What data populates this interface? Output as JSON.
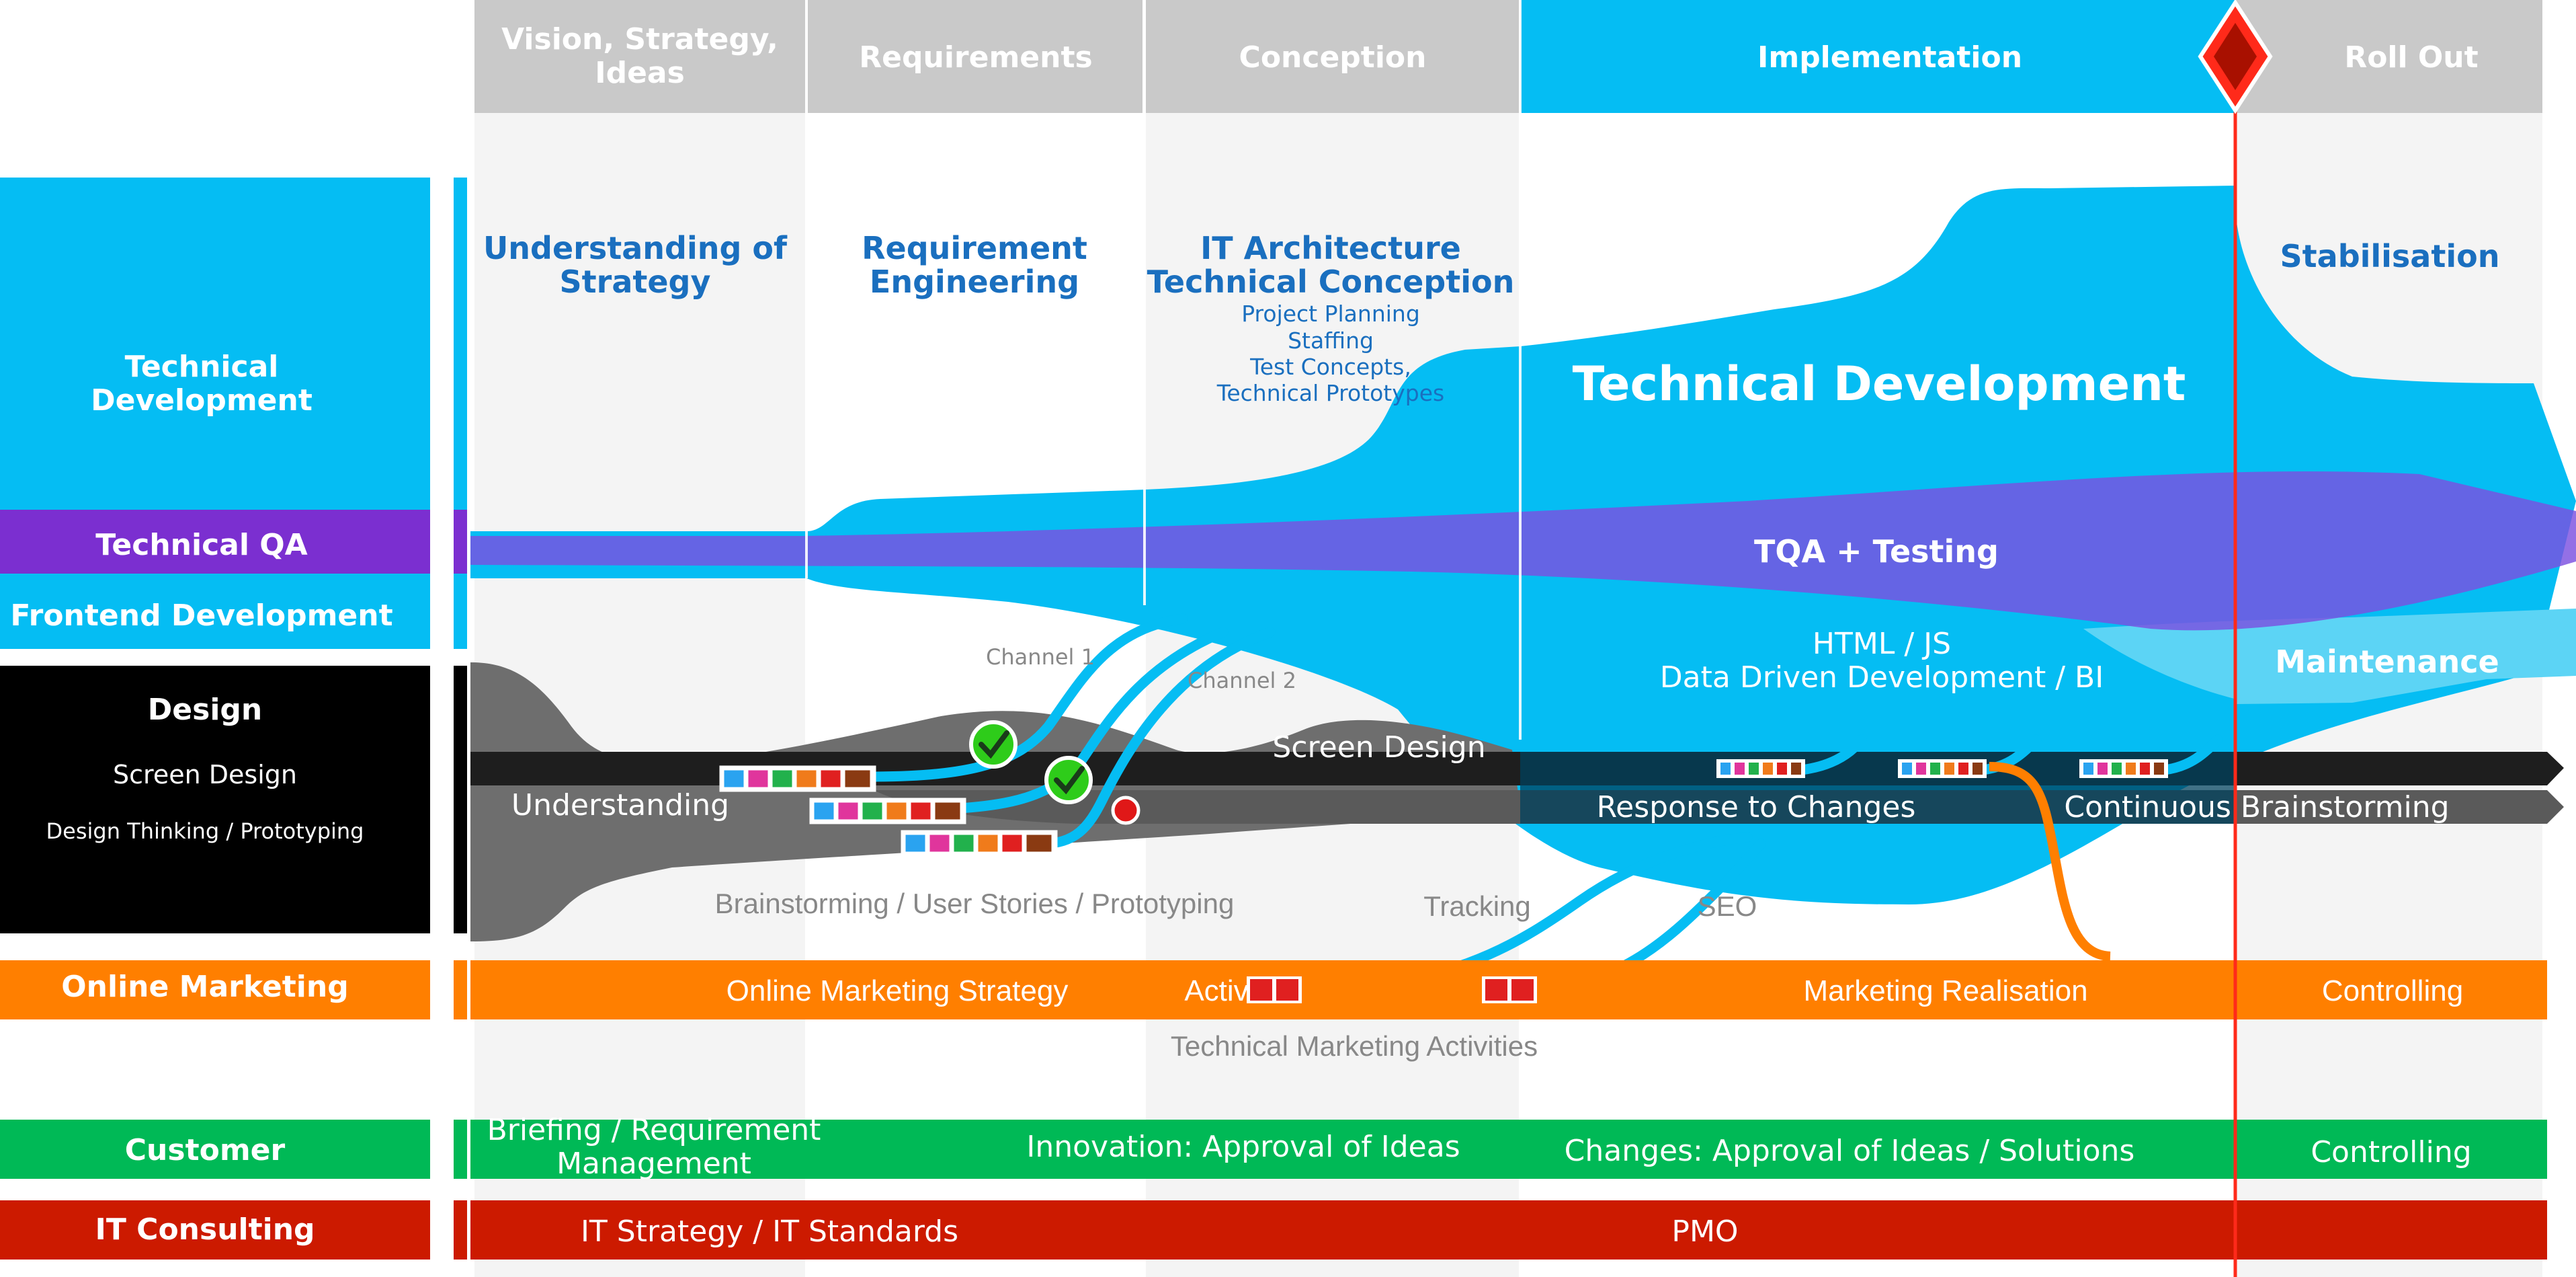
{
  "phases": {
    "vision_line1": "Vision, Strategy,",
    "vision_line2": "Ideas",
    "requirements": "Requirements",
    "conception": "Conception",
    "implementation": "Implementation",
    "rollout": "Roll Out"
  },
  "lanes": {
    "tech_dev_line1": "Technical",
    "tech_dev_line2": "Development",
    "tech_qa": "Technical QA",
    "frontend": "Frontend Development",
    "design": "Design",
    "design_sub1": "Screen Design",
    "design_sub2": "Design Thinking / Prototyping",
    "online_marketing": "Online Marketing",
    "customer": "Customer",
    "it_consulting": "IT Consulting"
  },
  "activities": {
    "understanding_strategy_1": "Understanding of",
    "understanding_strategy_2": "Strategy",
    "req_eng_1": "Requirement",
    "req_eng_2": "Engineering",
    "it_arch_1": "IT Architecture",
    "it_arch_2": "Technical Conception",
    "it_arch_3": "Project Planning",
    "it_arch_4": "Staffing",
    "it_arch_5": "Test Concepts,",
    "it_arch_6": "Technical Prototypes",
    "stabilisation": "Stabilisation",
    "technical_development": "Technical Development",
    "tqa_testing": "TQA + Testing",
    "html_js": "HTML / JS",
    "data_driven": "Data Driven Development / BI",
    "maintenance": "Maintenance",
    "channel1": "Channel 1",
    "channel2": "Channel 2",
    "screen_design": "Screen Design",
    "understanding": "Understanding",
    "response": "Response to Changes",
    "continuous": "Continuous Brainstorming",
    "brainstorming": "Brainstorming / User Stories  / Prototyping",
    "tracking": "Tracking",
    "seo": "SEO",
    "om_strategy": "Online Marketing Strategy",
    "om_activ": "Activ",
    "marketing_realisation": "Marketing Realisation",
    "om_controlling": "Controlling",
    "tech_marketing": "Technical Marketing Activities",
    "briefing_1": "Briefing / Requirement",
    "briefing_2": "Management",
    "innovation": "Innovation: Approval of Ideas",
    "changes": "Changes: Approval of Ideas / Solutions",
    "cust_controlling": "Controlling",
    "it_strategy": "IT Strategy / IT Standards",
    "pmo": "PMO"
  },
  "colors": {
    "cyan": "#05bdf3",
    "purple": "#7b2fd0",
    "black": "#000000",
    "orange": "#ff7f00",
    "green": "#00b956",
    "red": "#cc1a00",
    "phase_gray": "#c9c9c9",
    "column_gray": "#f3f3f3"
  }
}
